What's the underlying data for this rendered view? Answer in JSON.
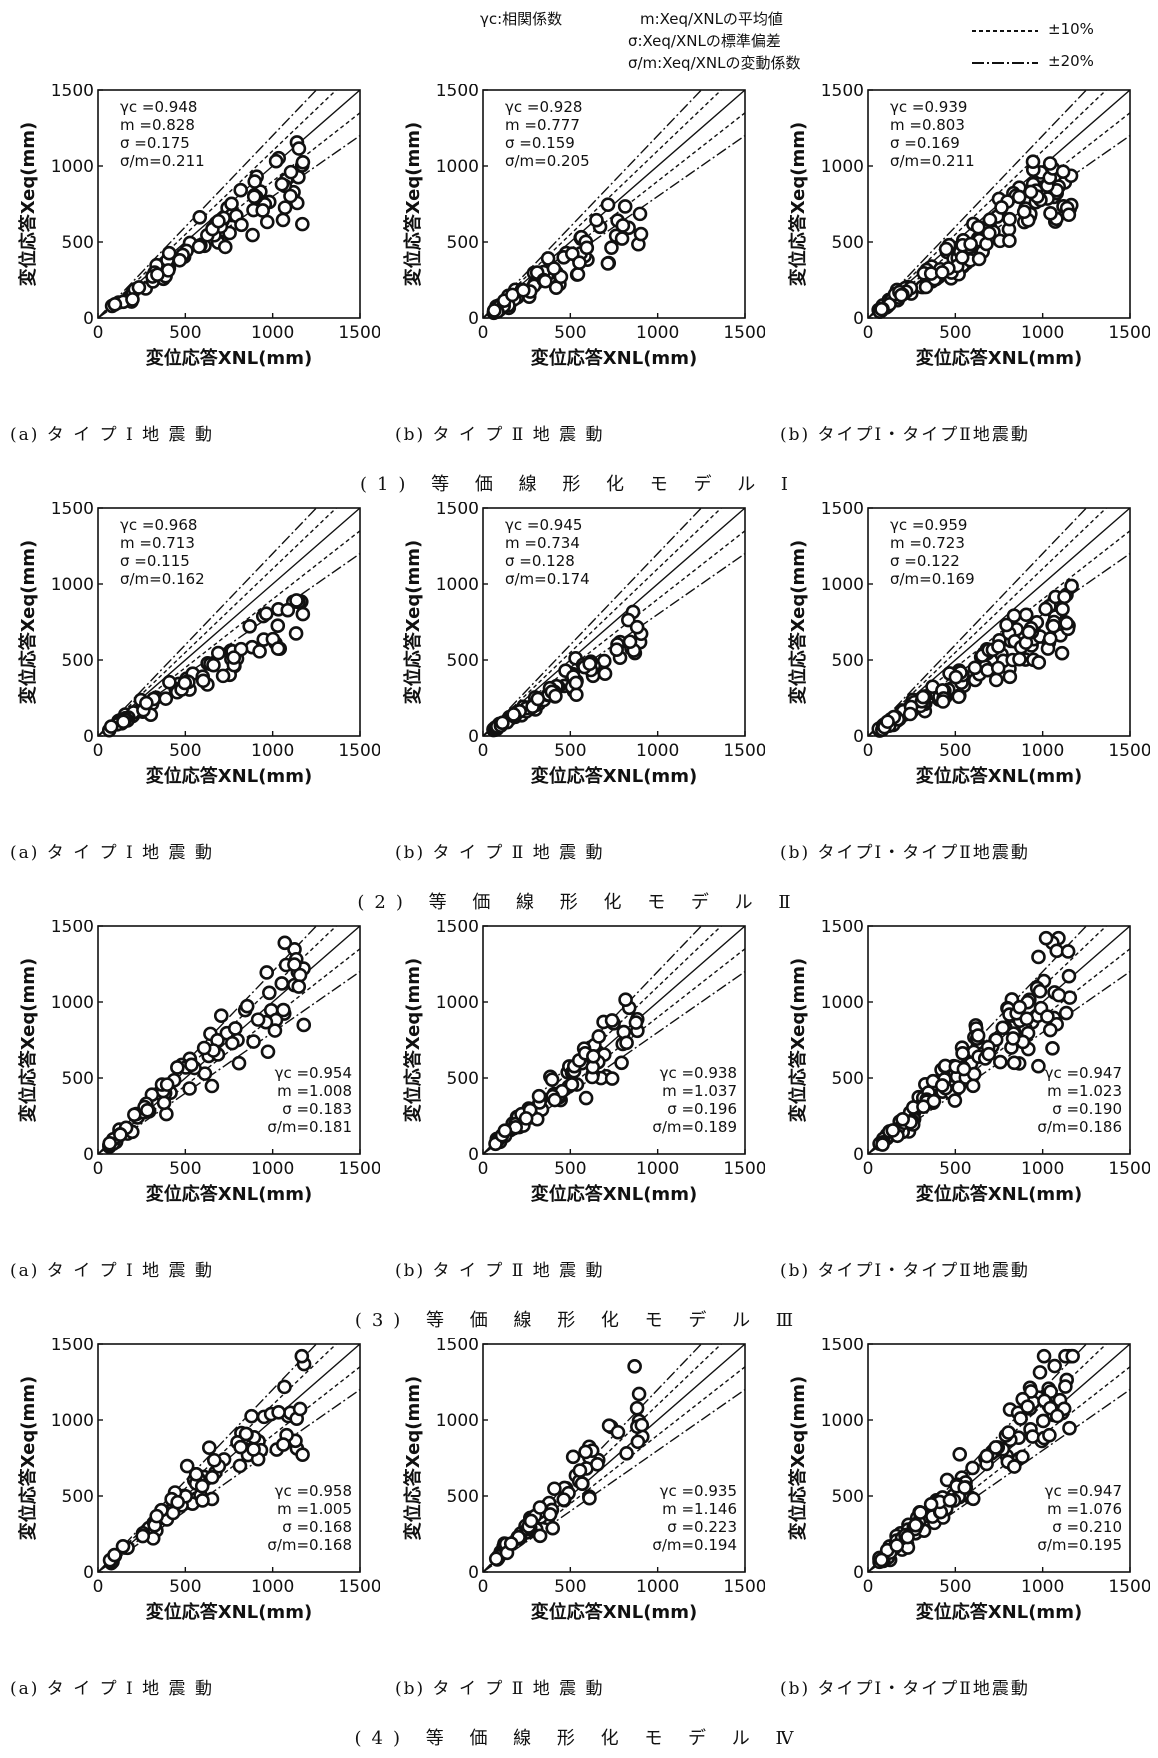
{
  "legend": {
    "stats_defs": [
      "γc:相関係数",
      "m:Xeq/XNLの平均値",
      "σ:Xeq/XNLの標準偏差",
      "σ/m:Xeq/XNLの変動係数"
    ],
    "lines": [
      {
        "label": "±10%",
        "style": "dashed"
      },
      {
        "label": "±20%",
        "style": "dash-dot"
      }
    ]
  },
  "axes": {
    "xlabel": "変位応答XNL(mm)",
    "ylabel": "変位応答Xeq(mm)",
    "xlim": [
      0,
      1500
    ],
    "ylim": [
      0,
      1500
    ],
    "ticks": [
      "0",
      "500",
      "1000",
      "1500"
    ]
  },
  "row_titles": [
    "(1) 等 価 線 形 化 モ デ ル Ⅰ",
    "(2) 等 価 線 形 化 モ デ ル Ⅱ",
    "(3) 等 価 線 形 化 モ デ ル Ⅲ",
    "(4) 等 価 線 形 化 モ デ ル Ⅳ"
  ],
  "captions": [
    "(a) タ イ プ Ⅰ 地 震 動",
    "(b) タ イ プ Ⅱ 地 震 動",
    "(b) タイプⅠ・タイプⅡ地震動"
  ],
  "chart_data": [
    {
      "type": "scatter",
      "model": 1,
      "stats": {
        "gamma_c": "0.948",
        "m": "0.828",
        "sigma": "0.175",
        "cov": "0.211"
      },
      "stats_pos": "top-left",
      "x_max": 1180,
      "ratio_m": 0.828,
      "ratio_sd": 0.175,
      "n": 80,
      "seed": 11
    },
    {
      "type": "scatter",
      "model": 1,
      "stats": {
        "gamma_c": "0.928",
        "m": "0.777",
        "sigma": "0.159",
        "cov": "0.205"
      },
      "stats_pos": "top-left",
      "x_max": 920,
      "ratio_m": 0.777,
      "ratio_sd": 0.159,
      "n": 80,
      "seed": 12
    },
    {
      "type": "scatter",
      "model": 1,
      "stats": {
        "gamma_c": "0.939",
        "m": "0.803",
        "sigma": "0.169",
        "cov": "0.211"
      },
      "stats_pos": "top-left",
      "x_max": 1180,
      "ratio_m": 0.803,
      "ratio_sd": 0.169,
      "n": 140,
      "seed": 13
    },
    {
      "type": "scatter",
      "model": 2,
      "stats": {
        "gamma_c": "0.968",
        "m": "0.713",
        "sigma": "0.115",
        "cov": "0.162"
      },
      "stats_pos": "top-left",
      "x_max": 1180,
      "ratio_m": 0.713,
      "ratio_sd": 0.115,
      "n": 80,
      "seed": 21
    },
    {
      "type": "scatter",
      "model": 2,
      "stats": {
        "gamma_c": "0.945",
        "m": "0.734",
        "sigma": "0.128",
        "cov": "0.174"
      },
      "stats_pos": "top-left",
      "x_max": 920,
      "ratio_m": 0.734,
      "ratio_sd": 0.128,
      "n": 80,
      "seed": 22
    },
    {
      "type": "scatter",
      "model": 2,
      "stats": {
        "gamma_c": "0.959",
        "m": "0.723",
        "sigma": "0.122",
        "cov": "0.169"
      },
      "stats_pos": "top-left",
      "x_max": 1180,
      "ratio_m": 0.723,
      "ratio_sd": 0.122,
      "n": 140,
      "seed": 23
    },
    {
      "type": "scatter",
      "model": 3,
      "stats": {
        "gamma_c": "0.954",
        "m": "1.008",
        "sigma": "0.183",
        "cov": "0.181"
      },
      "stats_pos": "bottom-right",
      "x_max": 1180,
      "ratio_m": 1.008,
      "ratio_sd": 0.183,
      "n": 80,
      "seed": 31
    },
    {
      "type": "scatter",
      "model": 3,
      "stats": {
        "gamma_c": "0.938",
        "m": "1.037",
        "sigma": "0.196",
        "cov": "0.189"
      },
      "stats_pos": "bottom-right",
      "x_max": 920,
      "ratio_m": 1.037,
      "ratio_sd": 0.196,
      "n": 80,
      "seed": 32
    },
    {
      "type": "scatter",
      "model": 3,
      "stats": {
        "gamma_c": "0.947",
        "m": "1.023",
        "sigma": "0.190",
        "cov": "0.186"
      },
      "stats_pos": "bottom-right",
      "x_max": 1180,
      "ratio_m": 1.023,
      "ratio_sd": 0.19,
      "n": 140,
      "seed": 33
    },
    {
      "type": "scatter",
      "model": 4,
      "stats": {
        "gamma_c": "0.958",
        "m": "1.005",
        "sigma": "0.168",
        "cov": "0.168"
      },
      "stats_pos": "bottom-right",
      "x_max": 1180,
      "ratio_m": 1.005,
      "ratio_sd": 0.168,
      "n": 80,
      "seed": 41
    },
    {
      "type": "scatter",
      "model": 4,
      "stats": {
        "gamma_c": "0.935",
        "m": "1.146",
        "sigma": "0.223",
        "cov": "0.194"
      },
      "stats_pos": "bottom-right",
      "x_max": 920,
      "ratio_m": 1.146,
      "ratio_sd": 0.223,
      "n": 80,
      "seed": 42
    },
    {
      "type": "scatter",
      "model": 4,
      "stats": {
        "gamma_c": "0.947",
        "m": "1.076",
        "sigma": "0.210",
        "cov": "0.195"
      },
      "stats_pos": "bottom-right",
      "x_max": 1180,
      "ratio_m": 1.076,
      "ratio_sd": 0.21,
      "n": 140,
      "seed": 43
    }
  ]
}
